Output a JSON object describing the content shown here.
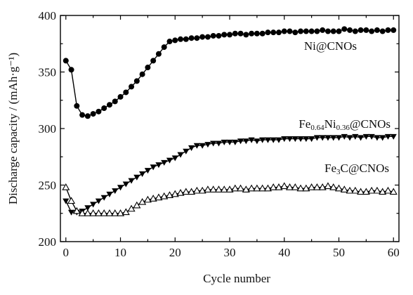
{
  "chart_data": {
    "type": "line",
    "xlabel": "Cycle number",
    "ylabel": "Discharge capacity / (mAh·g⁻¹)",
    "xlim": [
      -1,
      61
    ],
    "ylim": [
      200,
      400
    ],
    "xticks": [
      0,
      10,
      20,
      30,
      40,
      50,
      60
    ],
    "yticks": [
      200,
      250,
      300,
      350,
      400
    ],
    "grid": false,
    "legend": "none",
    "series": [
      {
        "name": "Ni@CNOs",
        "label_parts": [
          {
            "text": "Ni@CNOs"
          }
        ],
        "marker": "circle-filled",
        "color": "#000000",
        "x": [
          0,
          1,
          2,
          3,
          4,
          5,
          6,
          7,
          8,
          9,
          10,
          11,
          12,
          13,
          14,
          15,
          16,
          17,
          18,
          19,
          20,
          21,
          22,
          23,
          24,
          25,
          26,
          27,
          28,
          29,
          30,
          31,
          32,
          33,
          34,
          35,
          36,
          37,
          38,
          39,
          40,
          41,
          42,
          43,
          44,
          45,
          46,
          47,
          48,
          49,
          50,
          51,
          52,
          53,
          54,
          55,
          56,
          57,
          58,
          59,
          60
        ],
        "y": [
          360,
          352,
          320,
          312,
          311,
          313,
          315,
          318,
          321,
          324,
          328,
          332,
          337,
          342,
          348,
          354,
          360,
          366,
          372,
          377,
          378,
          379,
          379,
          380,
          380,
          381,
          381,
          382,
          382,
          383,
          383,
          384,
          384,
          383,
          384,
          384,
          384,
          385,
          385,
          385,
          386,
          386,
          385,
          386,
          386,
          386,
          386,
          387,
          386,
          386,
          386,
          388,
          387,
          386,
          387,
          387,
          386,
          387,
          386,
          387,
          387
        ]
      },
      {
        "name": "Fe0.64Ni0.36@CNOs",
        "label_parts": [
          {
            "text": "Fe"
          },
          {
            "text": "0.64",
            "sub": true
          },
          {
            "text": "Ni"
          },
          {
            "text": "0.36",
            "sub": true
          },
          {
            "text": "@CNOs"
          }
        ],
        "marker": "triangle-down-filled",
        "color": "#000000",
        "x": [
          0,
          1,
          2,
          3,
          4,
          5,
          6,
          7,
          8,
          9,
          10,
          11,
          12,
          13,
          14,
          15,
          16,
          17,
          18,
          19,
          20,
          21,
          22,
          23,
          24,
          25,
          26,
          27,
          28,
          29,
          30,
          31,
          32,
          33,
          34,
          35,
          36,
          37,
          38,
          39,
          40,
          41,
          42,
          43,
          44,
          45,
          46,
          47,
          48,
          49,
          50,
          51,
          52,
          53,
          54,
          55,
          56,
          57,
          58,
          59,
          60
        ],
        "y": [
          236,
          226,
          226,
          227,
          230,
          233,
          236,
          239,
          242,
          245,
          248,
          251,
          254,
          257,
          260,
          263,
          266,
          268,
          270,
          272,
          274,
          277,
          280,
          283,
          285,
          285,
          286,
          287,
          287,
          288,
          288,
          288,
          289,
          289,
          290,
          289,
          290,
          290,
          290,
          290,
          291,
          291,
          291,
          291,
          291,
          291,
          292,
          292,
          292,
          292,
          292,
          293,
          292,
          293,
          292,
          293,
          293,
          292,
          292,
          293,
          293
        ]
      },
      {
        "name": "Fe3C@CNOs",
        "label_parts": [
          {
            "text": "Fe"
          },
          {
            "text": "3",
            "sub": true
          },
          {
            "text": "C@CNOs"
          }
        ],
        "marker": "triangle-up-open",
        "color": "#000000",
        "x": [
          0,
          1,
          2,
          3,
          4,
          5,
          6,
          7,
          8,
          9,
          10,
          11,
          12,
          13,
          14,
          15,
          16,
          17,
          18,
          19,
          20,
          21,
          22,
          23,
          24,
          25,
          26,
          27,
          28,
          29,
          30,
          31,
          32,
          33,
          34,
          35,
          36,
          37,
          38,
          39,
          40,
          41,
          42,
          43,
          44,
          45,
          46,
          47,
          48,
          49,
          50,
          51,
          52,
          53,
          54,
          55,
          56,
          57,
          58,
          59,
          60
        ],
        "y": [
          248,
          236,
          227,
          225,
          225,
          225,
          225,
          225,
          225,
          225,
          225,
          226,
          229,
          232,
          235,
          237,
          238,
          239,
          240,
          241,
          242,
          243,
          244,
          244,
          245,
          245,
          246,
          246,
          246,
          246,
          246,
          247,
          247,
          246,
          247,
          247,
          247,
          247,
          248,
          248,
          249,
          248,
          248,
          247,
          247,
          248,
          248,
          248,
          249,
          248,
          247,
          246,
          245,
          245,
          244,
          244,
          245,
          245,
          244,
          245,
          244
        ]
      }
    ]
  }
}
